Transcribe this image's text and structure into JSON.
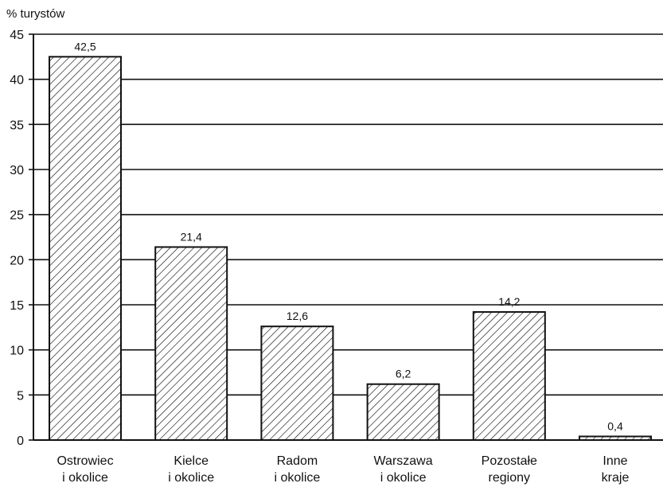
{
  "chart_data": {
    "type": "bar",
    "ylabel": "% turystów",
    "ylim": [
      0,
      45
    ],
    "yticks": [
      "0",
      "5",
      "10",
      "15",
      "20",
      "25",
      "30",
      "35",
      "40",
      "45"
    ],
    "categories": [
      [
        "Ostrowiec",
        "i okolice"
      ],
      [
        "Kielce",
        "i okolice"
      ],
      [
        "Radom",
        "i okolice"
      ],
      [
        "Warszawa",
        "i okolice"
      ],
      [
        "Pozostałe",
        "regiony"
      ],
      [
        "Inne",
        "kraje"
      ]
    ],
    "values": [
      42.5,
      21.4,
      12.6,
      6.2,
      14.2,
      0.4
    ],
    "data_labels": [
      "42,5",
      "21,4",
      "12,6",
      "6,2",
      "14,2",
      "0,4"
    ],
    "grid": true,
    "bar_fill": "diagonal-hatch",
    "colors": {
      "ink": "#111111",
      "background": "#ffffff"
    }
  }
}
